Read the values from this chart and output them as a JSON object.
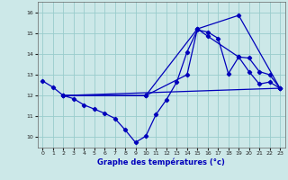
{
  "xlabel": "Graphe des températures (°c)",
  "bg_color": "#cce8e8",
  "grid_color": "#99cccc",
  "line_color": "#0000bb",
  "xlim": [
    -0.5,
    23.5
  ],
  "ylim": [
    9.5,
    16.5
  ],
  "yticks": [
    10,
    11,
    12,
    13,
    14,
    15,
    16
  ],
  "xticks": [
    0,
    1,
    2,
    3,
    4,
    5,
    6,
    7,
    8,
    9,
    10,
    11,
    12,
    13,
    14,
    15,
    16,
    17,
    18,
    19,
    20,
    21,
    22,
    23
  ],
  "series": [
    {
      "x": [
        0,
        1,
        2,
        3,
        4,
        5,
        6,
        7,
        8,
        9,
        10,
        11,
        12,
        13,
        14,
        15,
        16,
        17,
        18,
        19,
        20,
        21,
        22,
        23
      ],
      "y": [
        12.7,
        12.4,
        12.0,
        11.85,
        11.55,
        11.35,
        11.15,
        10.9,
        10.35,
        9.75,
        10.05,
        11.1,
        11.8,
        12.65,
        14.1,
        15.15,
        15.05,
        14.75,
        13.05,
        13.85,
        13.15,
        12.55,
        12.65,
        12.35
      ],
      "markers": true
    },
    {
      "comment": "line from x=2 going up through x=10,14,15,16,19,20,21,22,23",
      "x": [
        2,
        10,
        14,
        15,
        16,
        19,
        20,
        21,
        22,
        23
      ],
      "y": [
        12.0,
        12.0,
        13.0,
        15.2,
        14.85,
        13.85,
        13.8,
        13.15,
        13.0,
        12.35
      ],
      "markers": true
    },
    {
      "x": [
        2,
        10,
        15,
        19,
        23
      ],
      "y": [
        12.0,
        12.0,
        15.2,
        15.85,
        12.35
      ],
      "markers": true
    },
    {
      "x": [
        2,
        23
      ],
      "y": [
        12.0,
        12.35
      ],
      "markers": false
    }
  ]
}
